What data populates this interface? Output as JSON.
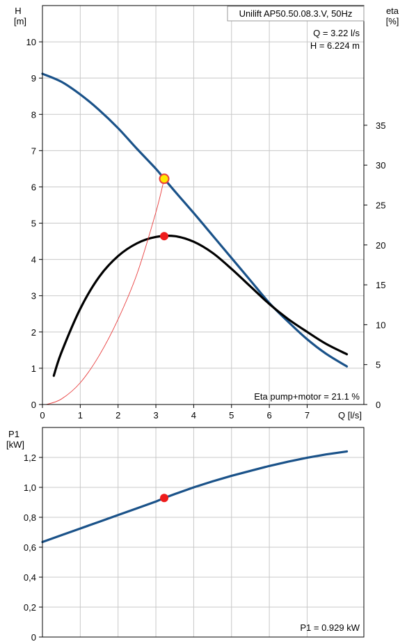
{
  "chart_data": [
    {
      "type": "line",
      "title": "Unilift AP50.50.08.3.V, 50Hz",
      "ylabel_top": "H",
      "ylabel_unit": "[m]",
      "y2label_top": "eta",
      "y2label_unit": "[%]",
      "xlabel": "Q [l/s]",
      "xlim": [
        0,
        8.5
      ],
      "ylim": [
        0,
        11
      ],
      "y2lim": [
        0,
        50
      ],
      "x_ticks": [
        "0",
        "1",
        "2",
        "3",
        "4",
        "5",
        "6",
        "7"
      ],
      "y_ticks": [
        "0",
        "1",
        "2",
        "3",
        "4",
        "5",
        "6",
        "7",
        "8",
        "9",
        "10"
      ],
      "y2_ticks": [
        "0",
        "5",
        "10",
        "15",
        "20",
        "25",
        "30",
        "35"
      ],
      "grid": true,
      "operating_point": {
        "q_label": "Q = 3.22 l/s",
        "h_label": "H = 6.224 m",
        "x": 3.22,
        "y": 6.224,
        "eta": 21.1
      },
      "eta_label": "Eta pump+motor = 21.1 %",
      "series": [
        {
          "name": "H",
          "color": "#1a5289",
          "x": [
            0,
            0.5,
            1.0,
            1.5,
            2.0,
            2.5,
            3.0,
            3.22,
            3.5,
            4.0,
            4.5,
            5.0,
            5.5,
            6.0,
            6.5,
            7.0,
            7.5,
            8.05
          ],
          "y": [
            9.12,
            8.9,
            8.55,
            8.12,
            7.62,
            7.05,
            6.5,
            6.224,
            5.88,
            5.28,
            4.66,
            4.04,
            3.42,
            2.8,
            2.28,
            1.8,
            1.4,
            1.05
          ]
        },
        {
          "name": "eta",
          "color": "#000000",
          "axis": "y2",
          "x": [
            0.3,
            0.5,
            1.0,
            1.5,
            2.0,
            2.5,
            3.0,
            3.5,
            4.0,
            4.5,
            5.0,
            5.5,
            6.0,
            6.5,
            7.0,
            7.5,
            8.05
          ],
          "y": [
            3.6,
            6.5,
            12.0,
            16.0,
            18.6,
            20.2,
            21.0,
            21.1,
            20.4,
            19.0,
            17.0,
            14.8,
            12.6,
            10.7,
            9.1,
            7.6,
            6.3
          ]
        },
        {
          "name": "system",
          "color": "#e83c3c",
          "x": [
            0.1,
            0.5,
            1.0,
            1.5,
            2.0,
            2.5,
            3.0,
            3.22
          ],
          "y": [
            0.0,
            0.15,
            0.6,
            1.35,
            2.35,
            3.6,
            5.3,
            6.224
          ]
        }
      ]
    },
    {
      "type": "line",
      "ylabel_top": "P1",
      "ylabel_unit": "[kW]",
      "xlim": [
        0,
        8.5
      ],
      "ylim": [
        0,
        1.4
      ],
      "y_ticks": [
        "0",
        "0,2",
        "0,4",
        "0,6",
        "0,8",
        "1,0",
        "1,2"
      ],
      "grid": true,
      "operating_point": {
        "x": 3.22,
        "y": 0.929
      },
      "p1_label": "P1 = 0.929 kW",
      "series": [
        {
          "name": "P1",
          "color": "#1a5289",
          "x": [
            0,
            0.5,
            1.0,
            1.5,
            2.0,
            2.5,
            3.0,
            3.22,
            3.5,
            4.0,
            4.5,
            5.0,
            5.5,
            6.0,
            6.5,
            7.0,
            7.5,
            8.05
          ],
          "y": [
            0.635,
            0.68,
            0.725,
            0.77,
            0.815,
            0.86,
            0.905,
            0.929,
            0.955,
            1.0,
            1.04,
            1.077,
            1.11,
            1.143,
            1.172,
            1.198,
            1.22,
            1.24
          ]
        }
      ]
    }
  ]
}
